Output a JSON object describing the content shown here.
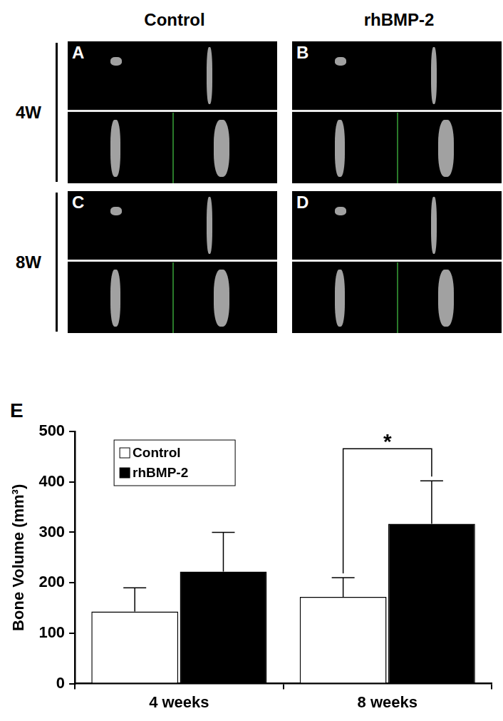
{
  "figure_panels": {
    "columns": [
      "Control",
      "rhBMP-2"
    ],
    "rows": [
      "4W",
      "8W"
    ],
    "letters": [
      "A",
      "B",
      "C",
      "D"
    ]
  },
  "chart_data": {
    "type": "bar",
    "panel_label": "E",
    "categories": [
      "4 weeks",
      "8 weeks"
    ],
    "ylabel": "Bone Volume (mm³)",
    "ylim": [
      0,
      500
    ],
    "yticks": [
      0,
      100,
      200,
      300,
      400,
      500
    ],
    "grid": false,
    "legend": "upper left",
    "series": [
      {
        "name": "Control",
        "color": "#ffffff",
        "values": [
          143,
          172
        ],
        "errors": [
          47,
          38
        ]
      },
      {
        "name": "rhBMP-2",
        "color": "#000000",
        "values": [
          222,
          317
        ],
        "errors": [
          78,
          85
        ]
      }
    ],
    "annotations": [
      {
        "text": "*",
        "category": "8 weeks",
        "between": [
          "Control",
          "rhBMP-2"
        ]
      }
    ]
  }
}
